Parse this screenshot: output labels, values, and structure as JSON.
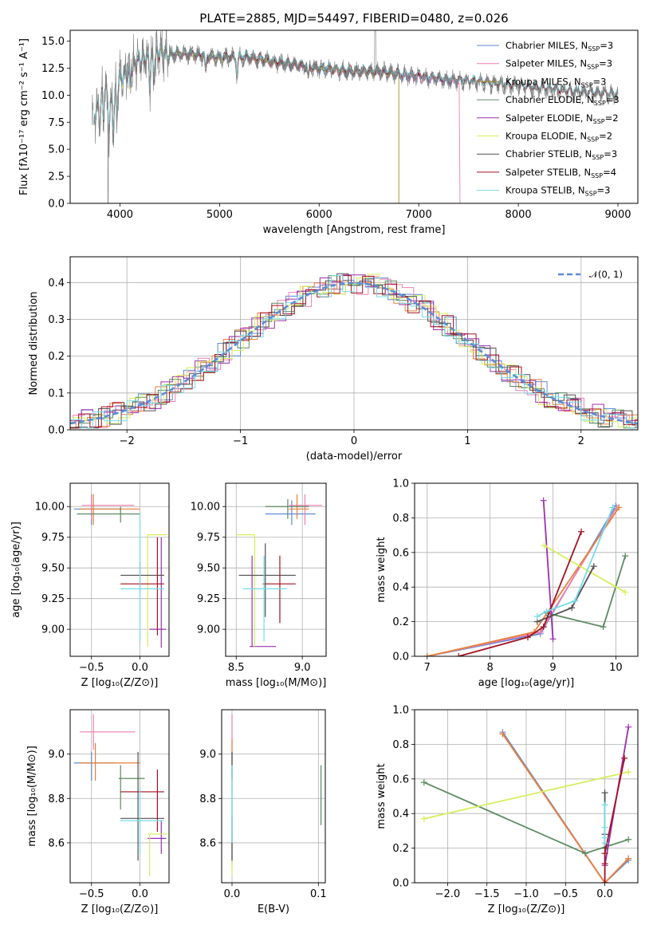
{
  "colors": {
    "chabrier_miles": "#5b8bd6",
    "salpeter_miles": "#ef7fb0",
    "kroupa_miles": "#a08c2a",
    "chabrier_elodie": "#5b8a60",
    "salpeter_elodie": "#9a2fb0",
    "kroupa_elodie": "#d4ef5a",
    "chabrier_stelib": "#505050",
    "salpeter_stelib": "#a31020",
    "kroupa_stelib": "#74dbe8",
    "orange": "#e8803a",
    "gaussian": "#5b8bd6"
  },
  "chart_data": [
    {
      "id": "spectrum",
      "type": "line",
      "title": "PLATE=2885, MJD=54497, FIBERID=0480, z=0.026",
      "xlabel": "wavelength [Angstrom, rest frame]",
      "ylabel": "Flux [fλ10⁻¹⁷ erg cm⁻² s⁻¹ A⁻¹]",
      "xlim": [
        3500,
        9200
      ],
      "ylim": [
        0,
        16
      ],
      "xticks": [
        4000,
        5000,
        6000,
        7000,
        8000,
        9000
      ],
      "yticks": [
        "0.0",
        "2.5",
        "5.0",
        "7.5",
        "10.0",
        "12.5",
        "15.0"
      ],
      "spectrum_trend": {
        "x": [
          3740,
          3800,
          3850,
          3900,
          3950,
          4000,
          4100,
          4200,
          4300,
          4400,
          4500,
          4700,
          5000,
          5300,
          5600,
          6000,
          6300,
          6600,
          7000,
          7300,
          7600,
          8000,
          8400,
          8800,
          9000
        ],
        "y": [
          8.0,
          9.5,
          11.0,
          9.0,
          10.5,
          11.5,
          12.5,
          13.3,
          13.5,
          14.0,
          13.8,
          13.8,
          13.5,
          13.5,
          13.0,
          12.5,
          12.2,
          12.2,
          11.7,
          11.4,
          11.2,
          10.8,
          10.4,
          10.1,
          10.0
        ]
      },
      "legend": [
        {
          "label": "Chabrier MILES, N",
          "sub": "SSP",
          "suffix": "=3",
          "color": "chabrier_miles"
        },
        {
          "label": "Salpeter MILES, N",
          "sub": "SSP",
          "suffix": "=3",
          "color": "salpeter_miles"
        },
        {
          "label": "Kroupa MILES, N",
          "sub": "SSP",
          "suffix": "=3",
          "color": "kroupa_miles"
        },
        {
          "label": "Chabrier ELODIE, N",
          "sub": "SSP",
          "suffix": "=3",
          "color": "chabrier_elodie"
        },
        {
          "label": "Salpeter ELODIE, N",
          "sub": "SSP",
          "suffix": "=2",
          "color": "salpeter_elodie"
        },
        {
          "label": "Kroupa ELODIE, N",
          "sub": "SSP",
          "suffix": "=2",
          "color": "kroupa_elodie"
        },
        {
          "label": "Chabrier STELIB, N",
          "sub": "SSP",
          "suffix": "=3",
          "color": "chabrier_stelib"
        },
        {
          "label": "Salpeter STELIB, N",
          "sub": "SSP",
          "suffix": "=4",
          "color": "salpeter_stelib"
        },
        {
          "label": "Kroupa STELIB, N",
          "sub": "SSP",
          "suffix": "=3",
          "color": "kroupa_stelib"
        }
      ]
    },
    {
      "id": "residuals",
      "type": "line",
      "xlabel": "(data-model)/error",
      "ylabel": "Normed distribution",
      "xlim": [
        -2.5,
        2.5
      ],
      "ylim": [
        0,
        0.47
      ],
      "xticks": [
        "−2",
        "−1",
        "0",
        "1",
        "2"
      ],
      "yticks": [
        "0.0",
        "0.1",
        "0.2",
        "0.3",
        "0.4"
      ],
      "legend": [
        {
          "label": "𝒩(0, 1)",
          "color": "gaussian"
        }
      ],
      "gaussian": {
        "mean": 0,
        "sigma": 1
      }
    },
    {
      "id": "age_vs_z",
      "type": "scatter",
      "xlabel": "Z [log₁₀(Z/Z⊙)]",
      "ylabel": "age  [log₁₀(age/yr)]",
      "xlim": [
        -0.72,
        0.3
      ],
      "ylim": [
        8.78,
        10.19
      ],
      "xticks": [
        "−0.5",
        "0.0"
      ],
      "yticks": [
        "9.00",
        "9.25",
        "9.50",
        "9.75",
        "10.00"
      ],
      "points": [
        {
          "x": -0.5,
          "xmin": -0.68,
          "xmax": -0.2,
          "y": 9.98,
          "ymin": 9.85,
          "ymax": 10.1,
          "color": "chabrier_miles"
        },
        {
          "x": -0.5,
          "xmin": -0.6,
          "xmax": -0.06,
          "y": 10.01,
          "ymin": 9.9,
          "ymax": 10.1,
          "color": "salpeter_miles"
        },
        {
          "x": -0.48,
          "xmin": -0.62,
          "xmax": 0.0,
          "y": 9.98,
          "ymin": 9.85,
          "ymax": 10.1,
          "color": "orange"
        },
        {
          "x": -0.2,
          "xmin": -0.65,
          "xmax": 0.0,
          "y": 9.94,
          "ymin": 9.87,
          "ymax": 10.0,
          "color": "chabrier_elodie"
        },
        {
          "x": 0.22,
          "xmin": 0.1,
          "xmax": 0.27,
          "y": 9.0,
          "ymin": 8.85,
          "ymax": 9.75,
          "color": "salpeter_elodie"
        },
        {
          "x": 0.08,
          "xmin": 0.08,
          "xmax": 0.28,
          "y": 9.77,
          "ymin": 8.86,
          "ymax": 9.77,
          "color": "kroupa_elodie"
        },
        {
          "x": 0.0,
          "xmin": -0.2,
          "xmax": 0.25,
          "y": 9.44,
          "ymin": 9.3,
          "ymax": 9.55,
          "color": "chabrier_stelib"
        },
        {
          "x": 0.18,
          "xmin": -0.2,
          "xmax": 0.25,
          "y": 9.37,
          "ymin": 8.95,
          "ymax": 9.75,
          "color": "salpeter_stelib"
        },
        {
          "x": 0.0,
          "xmin": -0.2,
          "xmax": 0.25,
          "y": 9.33,
          "ymin": 8.9,
          "ymax": 9.95,
          "color": "kroupa_stelib"
        }
      ]
    },
    {
      "id": "age_vs_mass",
      "type": "scatter",
      "xlabel": "mass [log₁₀(M/M⊙)]",
      "ylabel": "",
      "xlim": [
        8.42,
        9.18
      ],
      "ylim": [
        8.78,
        10.19
      ],
      "xticks": [
        "8.5",
        "9.0"
      ],
      "yticks": [
        "9.00",
        "9.25",
        "9.50",
        "9.75",
        "10.00"
      ],
      "points": [
        {
          "x": 8.92,
          "xmin": 8.72,
          "xmax": 9.1,
          "y": 9.94,
          "ymin": 9.85,
          "ymax": 10.05,
          "color": "chabrier_miles"
        },
        {
          "x": 9.02,
          "xmin": 8.9,
          "xmax": 9.15,
          "y": 10.01,
          "ymin": 9.85,
          "ymax": 10.1,
          "color": "salpeter_miles"
        },
        {
          "x": 8.96,
          "xmin": 8.9,
          "xmax": 9.05,
          "y": 9.98,
          "ymin": 9.9,
          "ymax": 10.1,
          "color": "orange"
        },
        {
          "x": 8.89,
          "xmin": 8.72,
          "xmax": 9.05,
          "y": 10.0,
          "ymin": 9.9,
          "ymax": 10.06,
          "color": "chabrier_elodie"
        },
        {
          "x": 8.62,
          "xmin": 8.6,
          "xmax": 8.8,
          "y": 8.86,
          "ymin": 8.86,
          "ymax": 9.6,
          "color": "salpeter_elodie"
        },
        {
          "x": 8.64,
          "xmin": 8.5,
          "xmax": 8.64,
          "y": 9.77,
          "ymin": 8.86,
          "ymax": 9.77,
          "color": "kroupa_elodie"
        },
        {
          "x": 8.72,
          "xmin": 8.52,
          "xmax": 8.95,
          "y": 9.44,
          "ymin": 9.1,
          "ymax": 9.7,
          "color": "chabrier_stelib"
        },
        {
          "x": 8.83,
          "xmin": 8.7,
          "xmax": 8.95,
          "y": 9.37,
          "ymin": 9.05,
          "ymax": 9.6,
          "color": "salpeter_stelib"
        },
        {
          "x": 8.71,
          "xmin": 8.55,
          "xmax": 8.88,
          "y": 9.33,
          "ymin": 8.9,
          "ymax": 9.6,
          "color": "kroupa_stelib"
        }
      ]
    },
    {
      "id": "weight_vs_age",
      "type": "line",
      "xlabel": "age  [log₁₀(age/yr)]",
      "ylabel": "mass weight",
      "xlim": [
        6.8,
        10.35
      ],
      "ylim": [
        0,
        1
      ],
      "xticks": [
        "7",
        "8",
        "9",
        "10"
      ],
      "yticks": [
        "0.0",
        "0.2",
        "0.4",
        "0.6",
        "0.8",
        "1.0"
      ],
      "series": [
        {
          "color": "chabrier_miles",
          "x": [
            7.0,
            8.8,
            10.0
          ],
          "y": [
            0.0,
            0.13,
            0.87
          ]
        },
        {
          "color": "salpeter_miles",
          "x": [
            7.0,
            8.8,
            10.01
          ],
          "y": [
            0.0,
            0.14,
            0.86
          ]
        },
        {
          "color": "orange",
          "x": [
            7.0,
            8.7,
            10.05
          ],
          "y": [
            0.0,
            0.14,
            0.86
          ]
        },
        {
          "color": "chabrier_elodie",
          "x": [
            8.9,
            9.8,
            10.15
          ],
          "y": [
            0.25,
            0.17,
            0.58
          ]
        },
        {
          "color": "salpeter_elodie",
          "x": [
            8.85,
            9.0
          ],
          "y": [
            0.9,
            0.1
          ]
        },
        {
          "color": "kroupa_elodie",
          "x": [
            8.86,
            10.15
          ],
          "y": [
            0.64,
            0.37
          ]
        },
        {
          "color": "chabrier_stelib",
          "x": [
            8.75,
            9.3,
            9.65
          ],
          "y": [
            0.2,
            0.28,
            0.52
          ]
        },
        {
          "color": "salpeter_stelib",
          "x": [
            7.5,
            8.6,
            8.85,
            9.45
          ],
          "y": [
            0.0,
            0.11,
            0.17,
            0.72
          ]
        },
        {
          "color": "kroupa_stelib",
          "x": [
            8.75,
            8.9,
            9.35,
            9.95
          ],
          "y": [
            0.23,
            0.26,
            0.32,
            0.86
          ]
        }
      ]
    },
    {
      "id": "mass_vs_z",
      "type": "scatter",
      "xlabel": "Z [log₁₀(Z/Z⊙)]",
      "ylabel": "mass [log₁₀(M/M⊙)]",
      "xlim": [
        -0.72,
        0.3
      ],
      "ylim": [
        8.42,
        9.2
      ],
      "xticks": [
        "−0.5",
        "0.0"
      ],
      "yticks": [
        "8.6",
        "8.8",
        "9.0"
      ],
      "points": [
        {
          "x": -0.5,
          "xmin": -0.68,
          "xmax": -0.25,
          "y": 8.96,
          "ymin": 8.88,
          "ymax": 9.01,
          "color": "chabrier_miles"
        },
        {
          "x": -0.48,
          "xmin": -0.62,
          "xmax": -0.05,
          "y": 9.1,
          "ymin": 9.02,
          "ymax": 9.18,
          "color": "salpeter_miles"
        },
        {
          "x": -0.46,
          "xmin": -0.62,
          "xmax": 0.0,
          "y": 8.96,
          "ymin": 8.88,
          "ymax": 9.05,
          "color": "orange"
        },
        {
          "x": -0.2,
          "xmin": -0.22,
          "xmax": 0.05,
          "y": 8.89,
          "ymin": 8.75,
          "ymax": 8.95,
          "color": "chabrier_elodie"
        },
        {
          "x": 0.22,
          "xmin": 0.08,
          "xmax": 0.27,
          "y": 8.62,
          "ymin": 8.55,
          "ymax": 8.7,
          "color": "salpeter_elodie"
        },
        {
          "x": 0.1,
          "xmin": 0.08,
          "xmax": 0.28,
          "y": 8.64,
          "ymin": 8.45,
          "ymax": 8.64,
          "color": "kroupa_elodie"
        },
        {
          "x": -0.02,
          "xmin": -0.2,
          "xmax": 0.25,
          "y": 8.71,
          "ymin": 8.52,
          "ymax": 9.01,
          "color": "chabrier_stelib"
        },
        {
          "x": 0.18,
          "xmin": -0.2,
          "xmax": 0.25,
          "y": 8.83,
          "ymin": 8.65,
          "ymax": 8.93,
          "color": "salpeter_stelib"
        },
        {
          "x": 0.0,
          "xmin": -0.2,
          "xmax": 0.25,
          "y": 8.7,
          "ymin": 8.55,
          "ymax": 8.85,
          "color": "kroupa_stelib"
        }
      ]
    },
    {
      "id": "mass_vs_ebv",
      "type": "scatter",
      "xlabel": "E(B-V)",
      "ylabel": "",
      "xlim": [
        -0.012,
        0.108
      ],
      "ylim": [
        8.42,
        9.2
      ],
      "xticks": [
        "0.0",
        "0.1"
      ],
      "yticks": [
        "8.6",
        "8.8",
        "9.0"
      ],
      "points": [
        {
          "x": 0.0,
          "ymin": 8.88,
          "ymax": 9.01,
          "color": "chabrier_miles"
        },
        {
          "x": 0.0,
          "ymin": 9.02,
          "ymax": 9.18,
          "color": "salpeter_miles"
        },
        {
          "x": 0.0,
          "ymin": 8.88,
          "ymax": 9.07,
          "color": "orange"
        },
        {
          "x": 0.103,
          "ymin": 8.68,
          "ymax": 8.95,
          "color": "chabrier_elodie"
        },
        {
          "x": 0.0,
          "ymin": 8.5,
          "ymax": 8.72,
          "color": "salpeter_elodie"
        },
        {
          "x": 0.0,
          "ymin": 8.45,
          "ymax": 8.65,
          "color": "kroupa_elodie"
        },
        {
          "x": 0.0,
          "ymin": 8.52,
          "ymax": 9.01,
          "color": "chabrier_stelib"
        },
        {
          "x": 0.0,
          "ymin": 8.6,
          "ymax": 8.95,
          "color": "kroupa_stelib"
        }
      ]
    },
    {
      "id": "weight_vs_z",
      "type": "line",
      "xlabel": "Z [log₁₀(Z/Z⊙)]",
      "ylabel": "mass weight",
      "xlim": [
        -2.42,
        0.42
      ],
      "ylim": [
        0,
        1
      ],
      "xticks": [
        "−2.0",
        "−1.5",
        "−1.0",
        "−0.5",
        "0.0"
      ],
      "yticks": [
        "0.0",
        "0.2",
        "0.4",
        "0.6",
        "0.8",
        "1.0"
      ],
      "series": [
        {
          "color": "chabrier_miles",
          "x": [
            -1.3,
            0.0,
            0.3
          ],
          "y": [
            0.87,
            0.0,
            0.13
          ]
        },
        {
          "color": "salpeter_miles",
          "x": [
            -1.3,
            0.0,
            0.3
          ],
          "y": [
            0.86,
            0.0,
            0.14
          ]
        },
        {
          "color": "orange",
          "x": [
            -1.3,
            0.0,
            0.3
          ],
          "y": [
            0.86,
            0.0,
            0.14
          ]
        },
        {
          "color": "chabrier_elodie",
          "x": [
            -2.3,
            -0.25,
            0.3
          ],
          "y": [
            0.58,
            0.17,
            0.25
          ]
        },
        {
          "color": "salpeter_elodie",
          "x": [
            0.0,
            0.3
          ],
          "y": [
            0.1,
            0.9
          ]
        },
        {
          "color": "kroupa_elodie",
          "x": [
            -2.3,
            0.3
          ],
          "y": [
            0.37,
            0.64
          ]
        },
        {
          "color": "chabrier_stelib",
          "x": [
            0.0,
            0.0,
            0.0
          ],
          "y": [
            0.2,
            0.28,
            0.52
          ]
        },
        {
          "color": "salpeter_stelib",
          "x": [
            0.0,
            0.0,
            0.0,
            0.25
          ],
          "y": [
            0.0,
            0.11,
            0.17,
            0.72
          ]
        },
        {
          "color": "kroupa_stelib",
          "x": [
            0.0,
            0.0,
            0.0,
            0.0
          ],
          "y": [
            0.23,
            0.26,
            0.32,
            0.45
          ]
        }
      ]
    }
  ]
}
